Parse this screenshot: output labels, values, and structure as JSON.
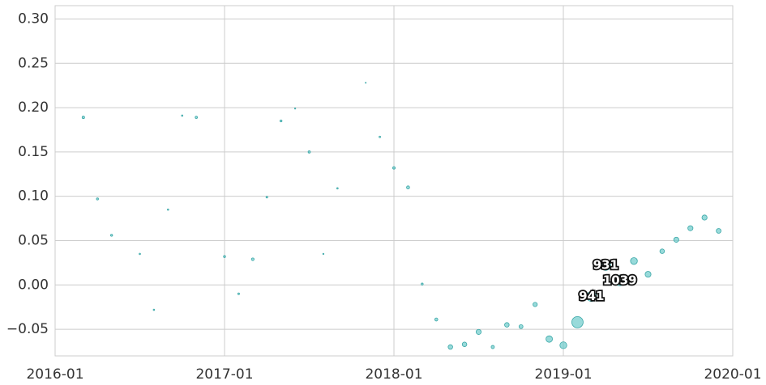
{
  "chart_data": {
    "type": "scatter",
    "x": [
      "2016-03",
      "2016-04",
      "2016-05",
      "2016-07",
      "2016-08",
      "2016-09",
      "2016-10",
      "2016-11",
      "2017-01",
      "2017-02",
      "2017-03",
      "2017-04",
      "2017-05",
      "2017-06",
      "2017-07",
      "2017-08",
      "2017-09",
      "2017-11",
      "2017-12",
      "2018-01",
      "2018-02",
      "2018-03",
      "2018-04",
      "2018-05",
      "2018-06",
      "2018-07",
      "2018-08",
      "2018-09",
      "2018-10",
      "2018-11",
      "2018-12",
      "2019-01",
      "2019-02",
      "2019-03",
      "2019-04",
      "2019-05",
      "2019-06",
      "2019-07",
      "2019-08",
      "2019-09",
      "2019-10",
      "2019-11",
      "2019-12"
    ],
    "values": [
      0.189,
      0.097,
      0.056,
      0.035,
      -0.028,
      0.085,
      0.191,
      0.189,
      0.032,
      -0.01,
      0.029,
      0.099,
      0.185,
      0.199,
      0.15,
      0.035,
      0.109,
      0.228,
      0.167,
      0.132,
      0.11,
      0.001,
      -0.039,
      -0.07,
      -0.067,
      -0.053,
      -0.07,
      -0.045,
      -0.047,
      -0.022,
      -0.061,
      -0.068,
      -0.042,
      -0.013,
      0.022,
      0.005,
      0.027,
      0.012,
      0.038,
      0.051,
      0.064,
      0.076,
      0.061
    ],
    "sizes": [
      60,
      40,
      40,
      20,
      20,
      20,
      20,
      50,
      40,
      30,
      70,
      30,
      40,
      15,
      50,
      15,
      20,
      10,
      25,
      60,
      90,
      40,
      90,
      200,
      200,
      250,
      100,
      200,
      150,
      180,
      400,
      450,
      1225,
      941,
      931,
      1039,
      450,
      330,
      200,
      250,
      250,
      250,
      220
    ],
    "size_labels": [
      null,
      null,
      null,
      null,
      null,
      null,
      null,
      null,
      null,
      null,
      null,
      null,
      null,
      null,
      null,
      null,
      null,
      null,
      null,
      null,
      null,
      null,
      null,
      null,
      null,
      null,
      null,
      null,
      null,
      null,
      null,
      null,
      null,
      "941",
      "931",
      "1039",
      null,
      null,
      null,
      null,
      null,
      null,
      null
    ],
    "color": "#6ccaca",
    "xlim": [
      "2016-01",
      "2020-01"
    ],
    "xticks": [
      "2016-01",
      "2017-01",
      "2018-01",
      "2019-01",
      "2020-01"
    ],
    "ylim": [
      -0.08,
      0.315
    ],
    "yticks": [
      {
        "value": -0.05,
        "label": "−0.05"
      },
      {
        "value": 0,
        "label": "0.00"
      },
      {
        "value": 0.05,
        "label": "0.05"
      },
      {
        "value": 0.1,
        "label": "0.10"
      },
      {
        "value": 0.15,
        "label": "0.15"
      },
      {
        "value": 0.2,
        "label": "0.20"
      },
      {
        "value": 0.25,
        "label": "0.25"
      },
      {
        "value": 0.3,
        "label": "0.30"
      }
    ],
    "grid": true
  }
}
